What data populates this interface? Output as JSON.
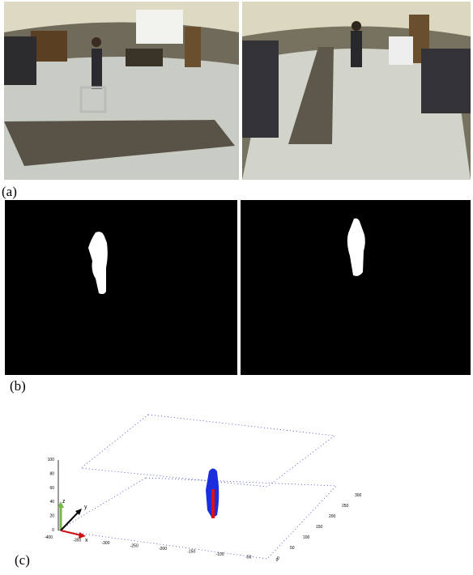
{
  "figure": {
    "panels": [
      {
        "label": "(a)"
      },
      {
        "label": "(b)"
      },
      {
        "label": "(c)",
        "plot": {
          "z_ticks": [
            100,
            80,
            60,
            40,
            20,
            0
          ],
          "x_ticks": [
            -400,
            -350,
            -300,
            -250,
            -200,
            -150,
            -100,
            -50,
            0
          ],
          "y_ticks": [
            300,
            250,
            200,
            150,
            100,
            50,
            0
          ],
          "axis_labels": {
            "x": "x",
            "y": "y",
            "z": "z"
          }
        }
      }
    ]
  }
}
